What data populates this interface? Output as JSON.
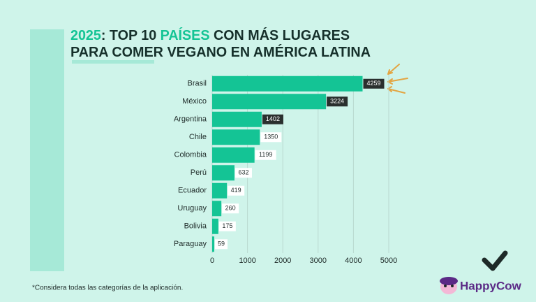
{
  "chart_data": {
    "type": "hbar",
    "title": [
      [
        {
          "text": "2025",
          "color": "#14c495"
        },
        {
          "text": ": TOP 10 ",
          "color": "#16302b"
        },
        {
          "text": "PAÍSES",
          "color": "#14c495"
        },
        {
          "text": " CON MÁS LUGARES",
          "color": "#16302b"
        }
      ],
      [
        {
          "text": "PARA COMER VEGANO EN AMÉRICA LATINA",
          "color": "#16302b"
        }
      ]
    ],
    "categories": [
      "Brasil",
      "México",
      "Argentina",
      "Chile",
      "Colombia",
      "Perú",
      "Ecuador",
      "Uruguay",
      "Bolivia",
      "Paraguay"
    ],
    "values": [
      4259,
      3224,
      1402,
      1350,
      1199,
      632,
      419,
      260,
      175,
      59
    ],
    "color": "#14c495",
    "value_label_colors": [
      "#2a2f2e",
      "#2a2f2e",
      "#2a2f2e",
      "#ffffff",
      "#ffffff",
      "#ffffff",
      "#ffffff",
      "#ffffff",
      "#ffffff",
      "#ffffff"
    ],
    "xlim": [
      0,
      5000
    ],
    "xticks": [
      0,
      1000,
      2000,
      3000,
      4000,
      5000
    ],
    "grid": true,
    "footnote": "*Considera todas las categorías de la aplicación.",
    "brand": "HappyCow"
  }
}
